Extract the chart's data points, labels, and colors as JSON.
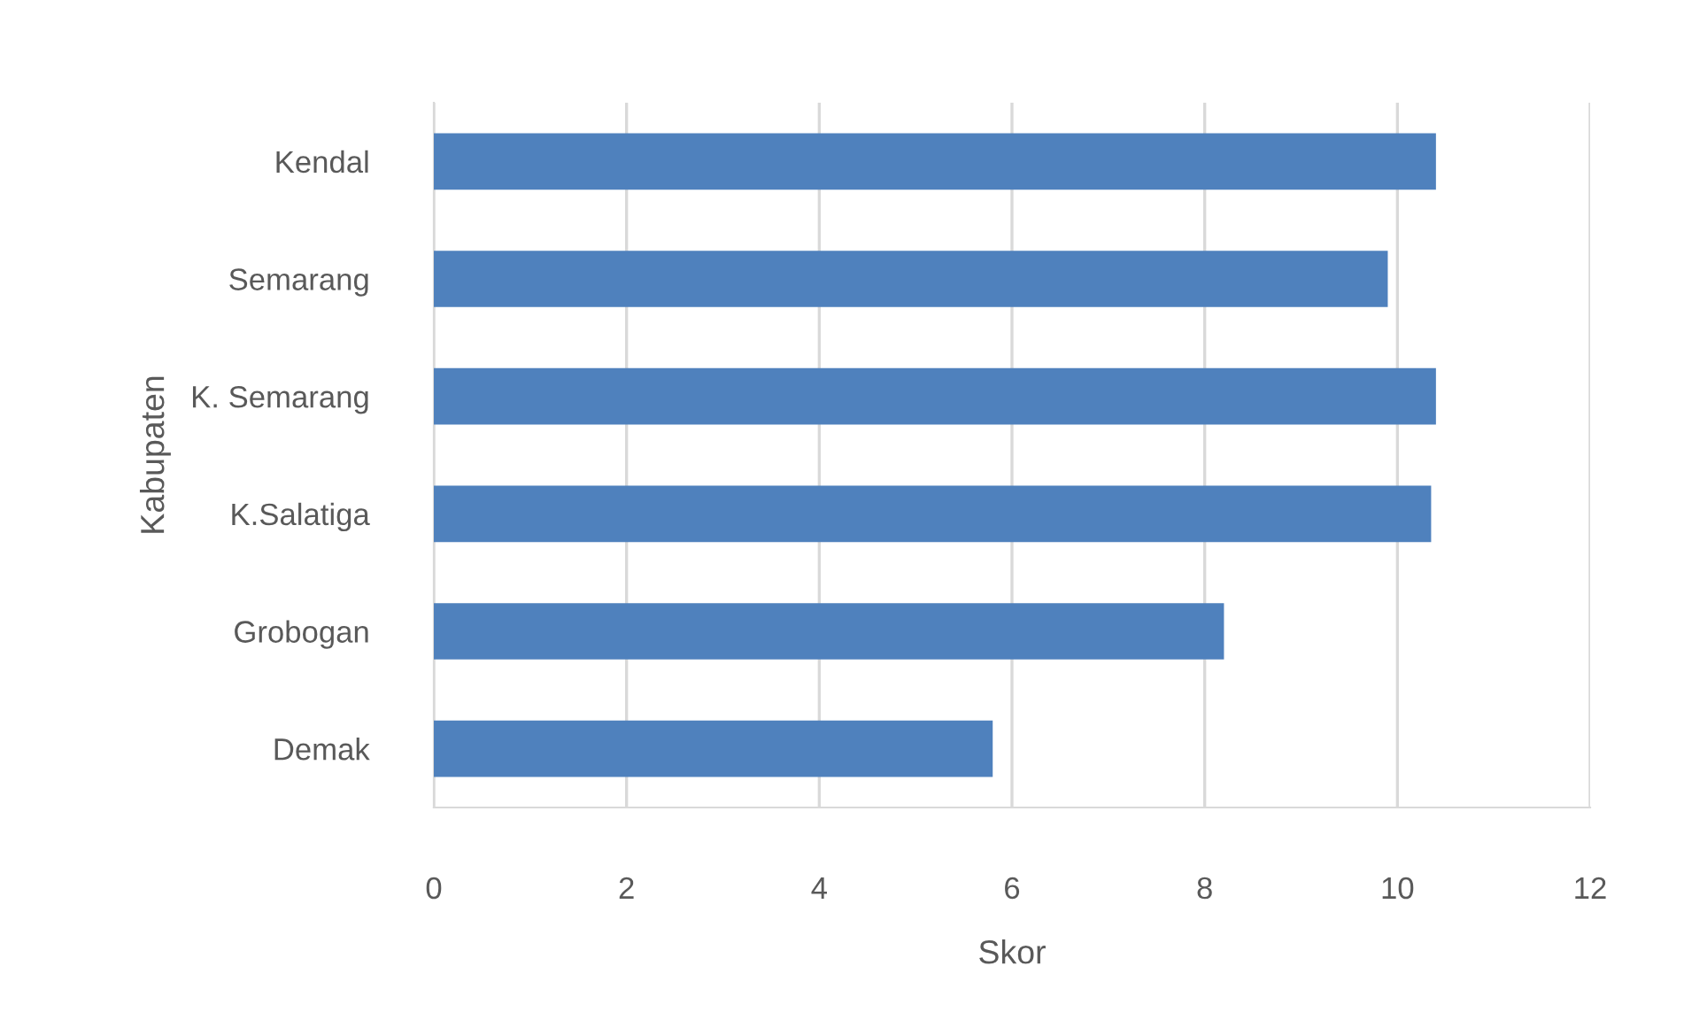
{
  "chart_data": {
    "type": "bar",
    "orientation": "horizontal",
    "xlabel": "Skor",
    "ylabel": "Kabupaten",
    "categories": [
      "Kendal",
      "Semarang",
      "K. Semarang",
      "K.Salatiga",
      "Grobogan",
      "Demak"
    ],
    "values": [
      10.4,
      9.9,
      10.4,
      10.35,
      8.2,
      5.8
    ],
    "color": "#4f81bd",
    "xlim": [
      0,
      12
    ],
    "xticks": [
      0,
      2,
      4,
      6,
      8,
      10,
      12
    ],
    "grid": "x"
  }
}
